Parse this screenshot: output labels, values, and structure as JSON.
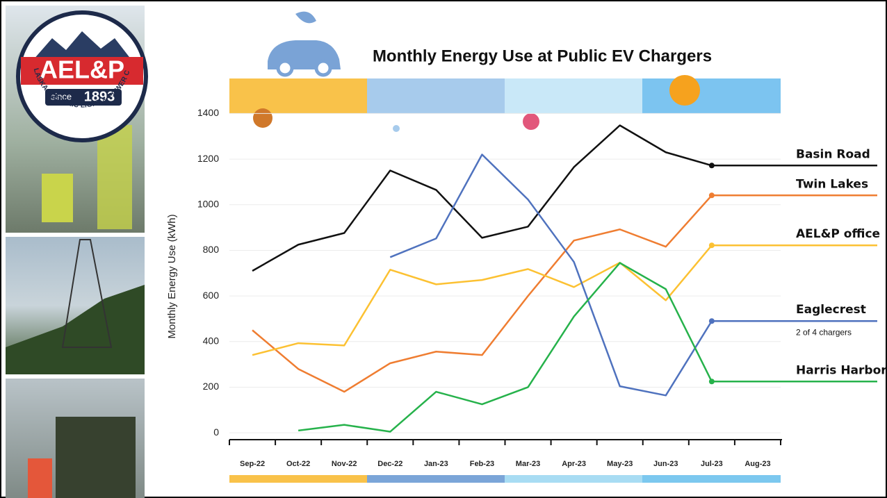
{
  "logo": {
    "name": "AEL&P",
    "since": "since",
    "year": "1893",
    "company": "ALASKA ELECTRIC LIGHT & POWER CO."
  },
  "chart_data": {
    "type": "line",
    "title": "Monthly Energy Use at Public EV Chargers",
    "y_label": "Monthly Energy Use (kWh)",
    "categories": [
      "Sep-22",
      "Oct-22",
      "Nov-22",
      "Dec-22",
      "Jan-23",
      "Feb-23",
      "Mar-23",
      "Apr-23",
      "May-23",
      "Jun-23",
      "Jul-23",
      "Aug-23"
    ],
    "series": [
      {
        "name": "Basin Road",
        "color": "#111111",
        "values": [
          710,
          825,
          876,
          1150,
          1065,
          855,
          904,
          1165,
          1348,
          1230,
          1172,
          null
        ]
      },
      {
        "name": "Twin Lakes",
        "color": "#ef7d31",
        "values": [
          450,
          280,
          180,
          305,
          356,
          341,
          600,
          843,
          892,
          816,
          1041,
          null
        ]
      },
      {
        "name": "AEL&P office",
        "color": "#fcc132",
        "values": [
          341,
          393,
          383,
          715,
          651,
          670,
          718,
          639,
          746,
          581,
          822,
          null
        ]
      },
      {
        "name": "Eaglecrest",
        "color": "#4f72be",
        "values": [
          null,
          null,
          null,
          770,
          852,
          1220,
          1023,
          749,
          204,
          164,
          490,
          null
        ]
      },
      {
        "name": "Harris Harbor",
        "color": "#26b24b",
        "values": [
          null,
          10,
          35,
          5,
          180,
          125,
          200,
          510,
          745,
          630,
          225,
          null
        ]
      }
    ],
    "annotation": "2 of 4 chargers",
    "ylim": [
      -30,
      1450
    ],
    "yticks": [
      0,
      200,
      400,
      600,
      800,
      1000,
      1200,
      1400
    ],
    "grid": true
  }
}
